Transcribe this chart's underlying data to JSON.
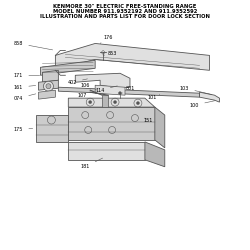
{
  "title_line1": "KENMORE 30\" ELECTRIC FREE-STANDING RANGE",
  "title_line2": "MODEL NUMBER 911.9352192 AND 911.9352592",
  "title_line3": "ILLUSTRATION AND PARTS LIST FOR DOOR LOCK SECTION",
  "bg_color": "#ffffff",
  "text_color": "#000000",
  "line_color": "#555555",
  "fill_light": "#e0e0e0",
  "fill_mid": "#cccccc",
  "fill_dark": "#b8b8b8"
}
